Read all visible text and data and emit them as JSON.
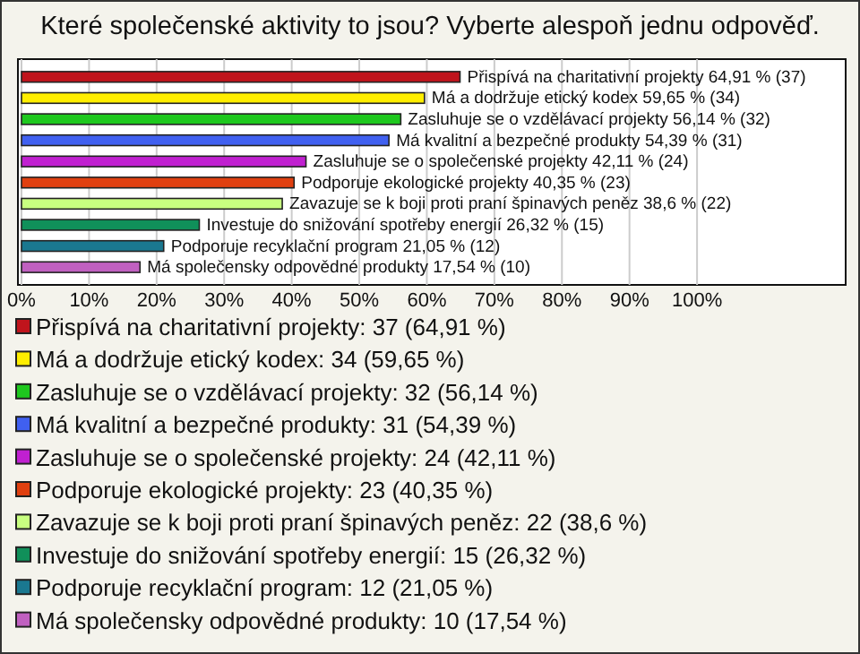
{
  "chart_data": {
    "type": "bar",
    "orientation": "horizontal",
    "title": "Které společenské aktivity to jsou? Vyberte alespoň jednu odpověď.",
    "categories": [
      "Přispívá na charitativní projekty",
      "Má a dodržuje etický kodex",
      "Zasluhuje se o vzdělávací projekty",
      "Má kvalitní a bezpečné produkty",
      "Zasluhuje se o společenské projekty",
      "Podporuje ekologické projekty",
      "Zavazuje se k boji proti praní špinavých peněz",
      "Investuje do snižování spotřeby energií",
      "Podporuje recyklační program",
      "Má společensky odpovědné produkty"
    ],
    "values": [
      64.91,
      59.65,
      56.14,
      54.39,
      42.11,
      40.35,
      38.6,
      26.32,
      21.05,
      17.54
    ],
    "colors": [
      "#c0141c",
      "#ffee00",
      "#1ec81e",
      "#4060f0",
      "#c020d0",
      "#e04010",
      "#c8ff80",
      "#10905a",
      "#1a7890",
      "#c060c0"
    ],
    "value_labels": [
      "64,91 % (37)",
      "59,65 % (34)",
      "56,14 % (32)",
      "54,39 % (31)",
      "42,11 % (24)",
      "40,35 % (23)",
      "38,6 % (22)",
      "26,32 % (15)",
      "21,05 % (12)",
      "17,54 % (10)"
    ],
    "annotations": [
      "Přispívá na charitativní projekty: 37 (64,91 %)",
      "Má a dodržuje etický kodex: 34 (59,65 %)",
      "Zasluhuje se o vzdělávací projekty: 32 (56,14 %)",
      "Má kvalitní a bezpečné produkty: 31 (54,39 %)",
      "Zasluhuje se o společenské projekty: 24 (42,11 %)",
      "Podporuje ekologické projekty: 23 (40,35 %)",
      "Zavazuje se k boji proti praní špinavých peněz: 22 (38,6 %)",
      "Investuje do snižování spotřeby energií: 15 (26,32 %)",
      "Podporuje recyklační program: 12 (21,05 %)",
      "Má společensky odpovědné produkty: 10 (17,54 %)"
    ],
    "xlim": [
      0,
      122
    ],
    "xticks": [
      {
        "value": 0,
        "label": "0%"
      },
      {
        "value": 10,
        "label": "10%"
      },
      {
        "value": 20,
        "label": "20%"
      },
      {
        "value": 30,
        "label": "30%"
      },
      {
        "value": 40,
        "label": "40%"
      },
      {
        "value": 50,
        "label": "50%"
      },
      {
        "value": 60,
        "label": "60%"
      },
      {
        "value": 70,
        "label": "70%"
      },
      {
        "value": 80,
        "label": "80%"
      },
      {
        "value": 90,
        "label": "90%"
      },
      {
        "value": 100,
        "label": "100%"
      }
    ],
    "grid": "x",
    "tick_labels": "x"
  }
}
